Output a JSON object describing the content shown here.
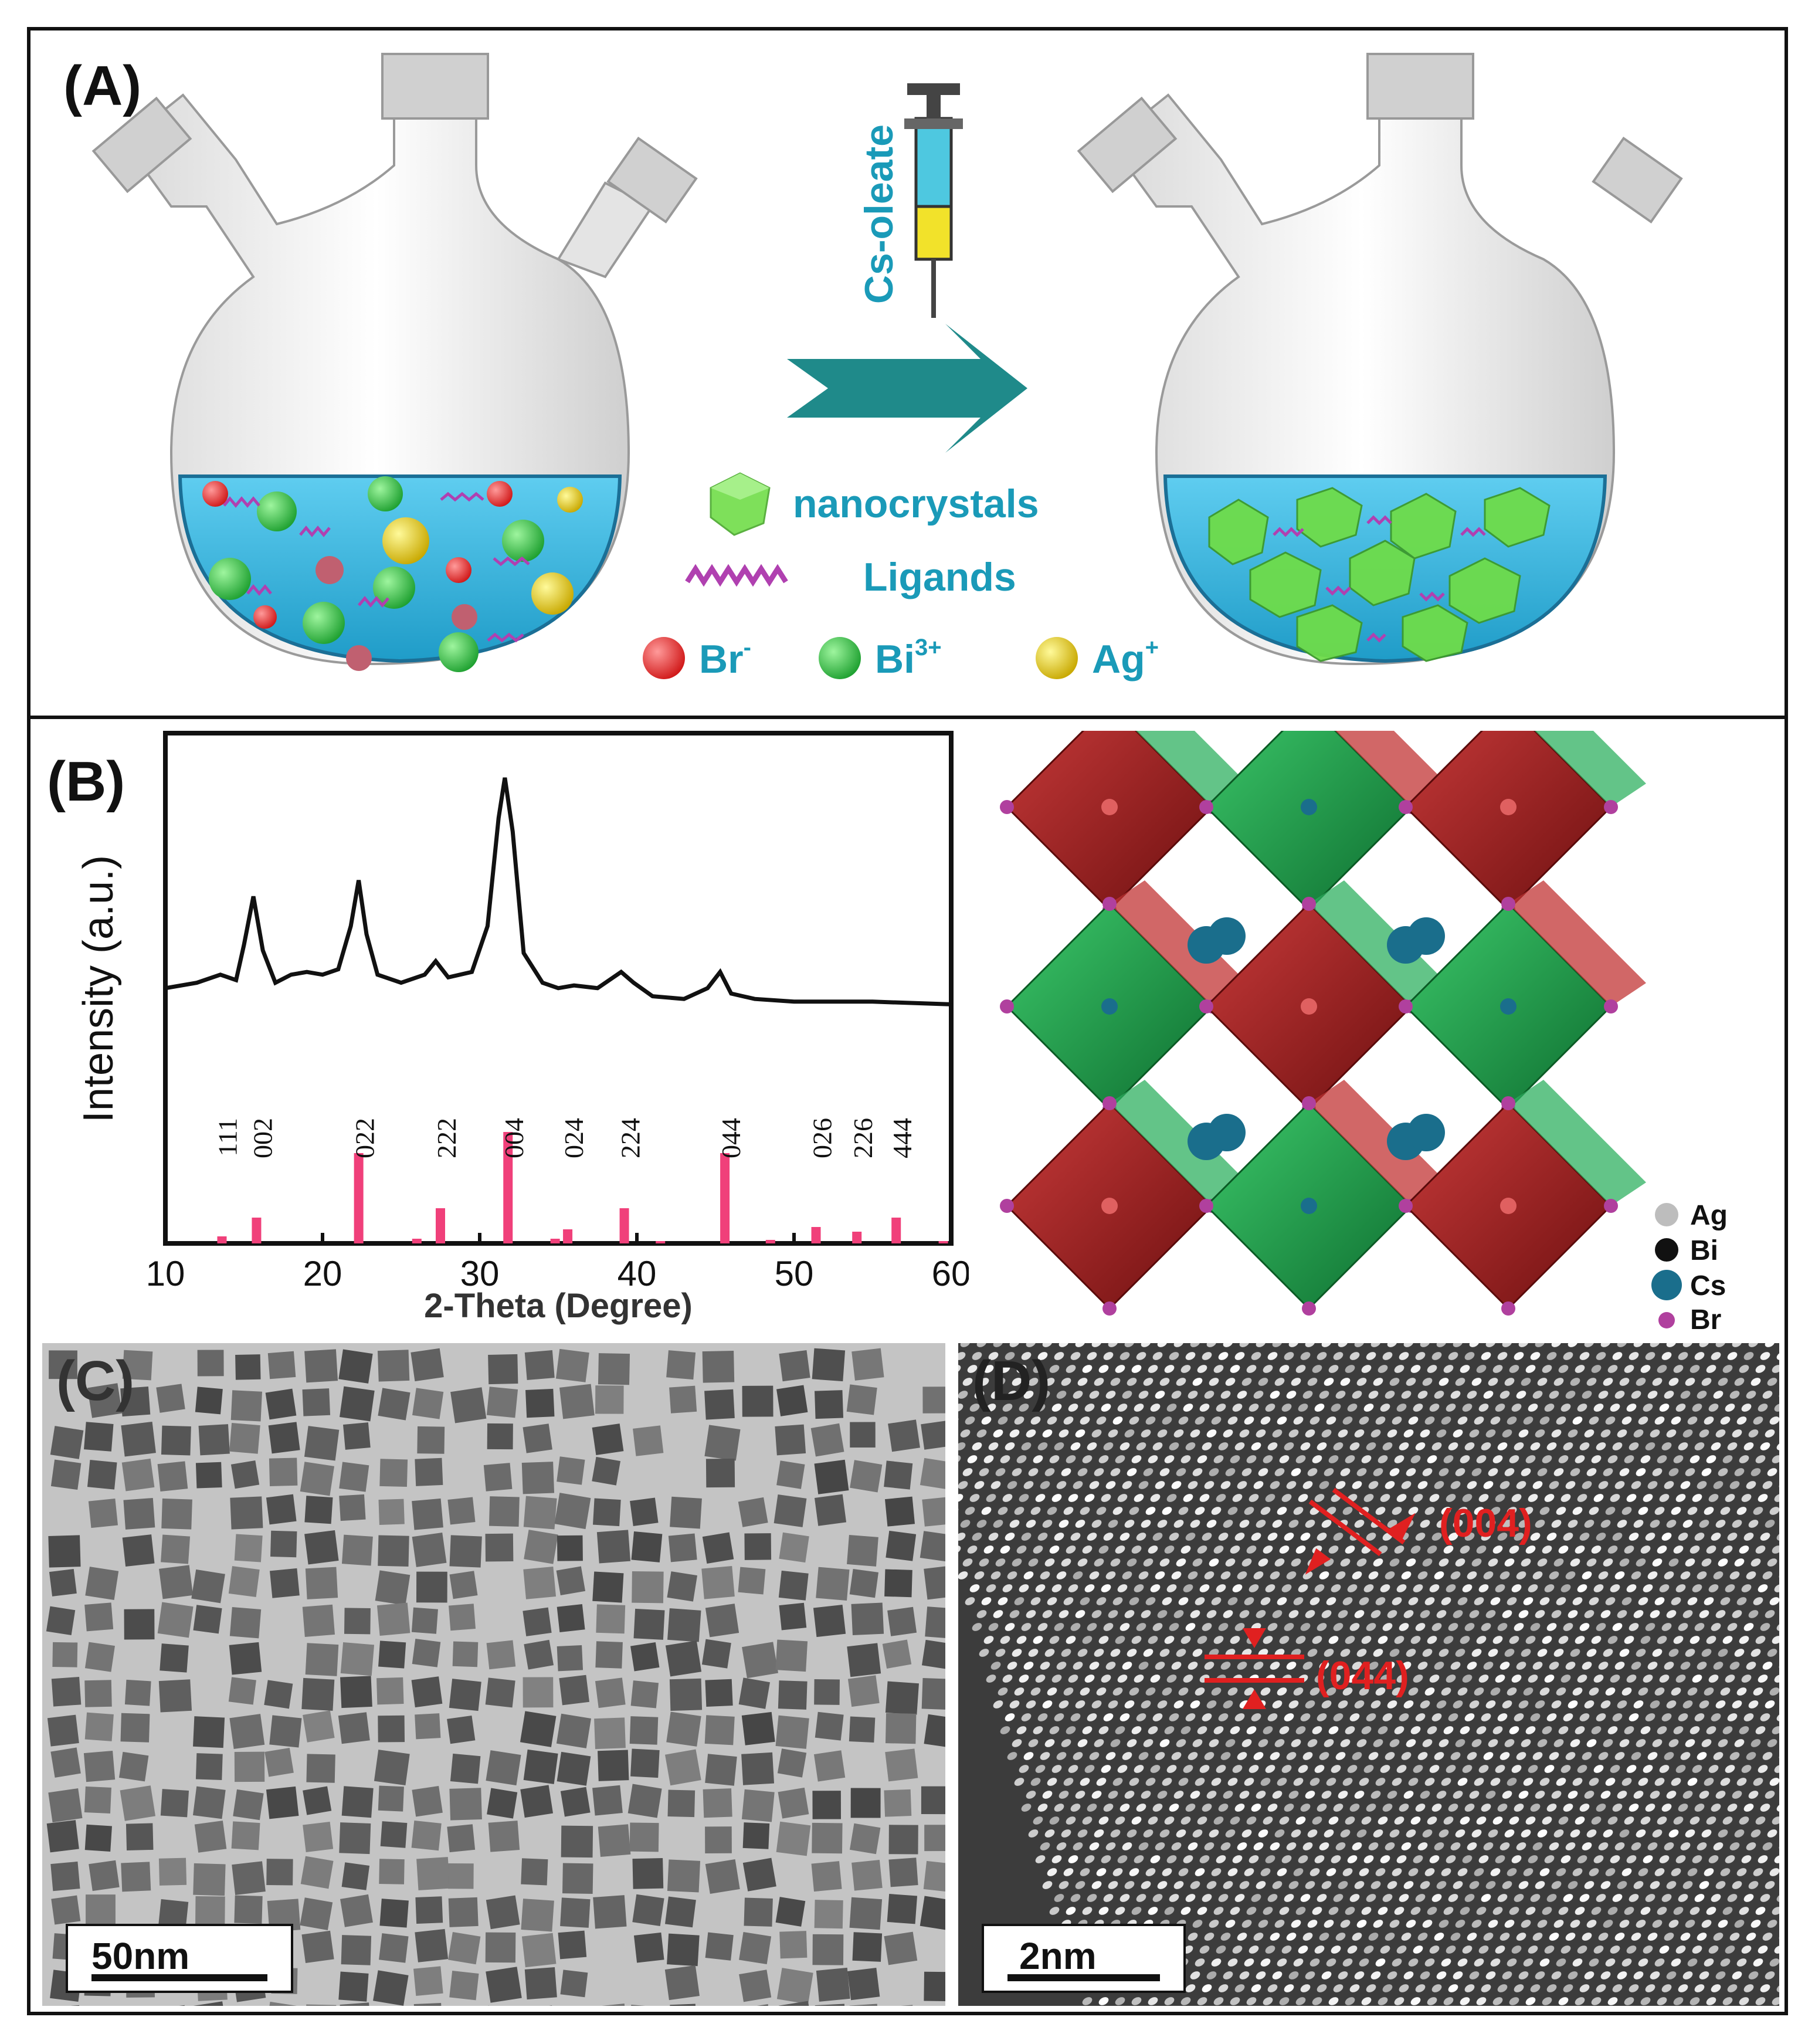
{
  "panelA": {
    "label": "(A)",
    "syringe_label": "Cs-oleate",
    "legend": {
      "nanocrystals": "nanocrystals",
      "ligands": "Ligands",
      "ion_br": "Br",
      "ion_br_sup": "-",
      "ion_bi": "Bi",
      "ion_bi_sup": "3+",
      "ion_ag": "Ag",
      "ion_ag_sup": "+"
    },
    "colors": {
      "solution": "#3bb8e0",
      "accent": "#1a9ab8",
      "arrow": "#1f8a8a",
      "ligand": "#b040b0"
    }
  },
  "panelB": {
    "label": "(B)",
    "structure_legend": [
      {
        "name": "Ag",
        "color": "#bdbdbd"
      },
      {
        "name": "Bi",
        "color": "#111111"
      },
      {
        "name": "Cs",
        "color": "#1a6e8c"
      },
      {
        "name": "Br",
        "color": "#b0409e"
      }
    ]
  },
  "chart_data": {
    "type": "line",
    "xlabel": "2-Theta (Degree)",
    "ylabel": "Intensity (a.u.)",
    "xlim": [
      10,
      60
    ],
    "xticks": [
      10,
      20,
      30,
      40,
      50,
      60
    ],
    "series": [
      {
        "x": [
          10,
          12,
          13.5,
          14.5,
          15,
          15.6,
          16.2,
          17,
          18,
          19,
          20,
          21,
          21.8,
          22.3,
          22.8,
          23.5,
          25,
          26.5,
          27.2,
          28,
          29.5,
          30.5,
          31.2,
          31.6,
          32.1,
          32.8,
          34,
          35,
          36,
          37.5,
          38.5,
          39,
          39.8,
          41,
          43,
          44.5,
          45.3,
          46,
          47.5,
          50,
          55,
          60
        ],
        "y": [
          0.22,
          0.24,
          0.27,
          0.25,
          0.38,
          0.56,
          0.36,
          0.24,
          0.27,
          0.28,
          0.27,
          0.29,
          0.45,
          0.62,
          0.42,
          0.27,
          0.24,
          0.27,
          0.32,
          0.26,
          0.28,
          0.45,
          0.85,
          1.0,
          0.8,
          0.35,
          0.24,
          0.22,
          0.23,
          0.22,
          0.26,
          0.28,
          0.24,
          0.19,
          0.18,
          0.22,
          0.28,
          0.2,
          0.18,
          0.17,
          0.17,
          0.16
        ]
      }
    ],
    "reference_peaks": [
      {
        "x": 13.6,
        "h": 0.06,
        "label": ""
      },
      {
        "x": 15.8,
        "h": 0.22,
        "label": "111"
      },
      {
        "x": 15.8,
        "h": 0.22,
        "label": "002"
      },
      {
        "x": 22.3,
        "h": 0.77,
        "label": "022"
      },
      {
        "x": 26.0,
        "h": 0.04,
        "label": ""
      },
      {
        "x": 27.5,
        "h": 0.3,
        "label": "222"
      },
      {
        "x": 31.8,
        "h": 0.95,
        "label": "004"
      },
      {
        "x": 34.8,
        "h": 0.04,
        "label": ""
      },
      {
        "x": 35.6,
        "h": 0.12,
        "label": "024"
      },
      {
        "x": 39.2,
        "h": 0.3,
        "label": "224"
      },
      {
        "x": 41.5,
        "h": 0.02,
        "label": ""
      },
      {
        "x": 45.6,
        "h": 0.77,
        "label": "044"
      },
      {
        "x": 48.5,
        "h": 0.03,
        "label": ""
      },
      {
        "x": 51.4,
        "h": 0.14,
        "label": "026"
      },
      {
        "x": 54.0,
        "h": 0.1,
        "label": "226"
      },
      {
        "x": 56.5,
        "h": 0.22,
        "label": "444"
      },
      {
        "x": 59.5,
        "h": 0.02,
        "label": ""
      }
    ]
  },
  "panelC": {
    "label": "(C)",
    "scale_bar": "50nm"
  },
  "panelD": {
    "label": "(D)",
    "scale_bar": "2nm",
    "plane_1": "(004)",
    "plane_2": "(044)"
  }
}
